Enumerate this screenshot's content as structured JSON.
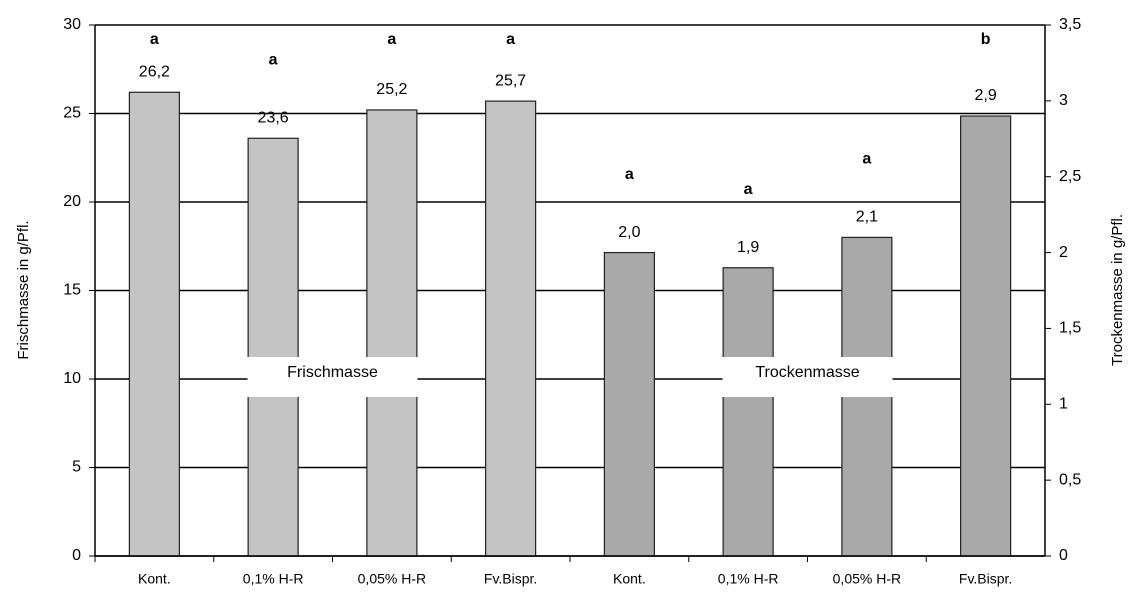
{
  "chart_data": {
    "type": "bar",
    "y_label": "Frischmasse in g/Pfl.",
    "y2_label": "Trockenmasse in g/Pfl.",
    "categories": [
      "Kont.",
      "0,1% H-R",
      "0,05% H-R",
      "Fv.Bispr.",
      "Kont.",
      "0,1% H-R",
      "0,05% H-R",
      "Fv.Bispr."
    ],
    "series": [
      {
        "name": "Frischmasse",
        "color": "#c4c4c4",
        "values": [
          26.2,
          23.6,
          25.2,
          25.7,
          null,
          null,
          null,
          null
        ],
        "value_labels": [
          "26,2",
          "23,6",
          "25,2",
          "25,7",
          null,
          null,
          null,
          null
        ],
        "letters": [
          "a",
          "a",
          "a",
          "a",
          null,
          null,
          null,
          null
        ]
      },
      {
        "name": "Trockenmasse",
        "color": "#a9a9a9",
        "axis": "y2",
        "values": [
          null,
          null,
          null,
          null,
          2.0,
          1.9,
          2.1,
          2.9
        ],
        "value_labels": [
          null,
          null,
          null,
          null,
          "2,0",
          "1,9",
          "2,1",
          "2,9"
        ],
        "letters": [
          null,
          null,
          null,
          null,
          "a",
          "a",
          "a",
          "b"
        ]
      }
    ],
    "ylim": [
      0,
      30
    ],
    "yticks": [
      0,
      5,
      10,
      15,
      20,
      25,
      30
    ],
    "y2lim": [
      0,
      3.5
    ],
    "y2ticks": [
      0,
      {
        "value": 0.5,
        "label": "0,5"
      },
      1,
      {
        "value": 1.5,
        "label": "1,5"
      },
      2,
      {
        "value": 2.5,
        "label": "2,5"
      },
      3,
      {
        "value": 3.5,
        "label": "3,5"
      }
    ],
    "grid": true
  }
}
